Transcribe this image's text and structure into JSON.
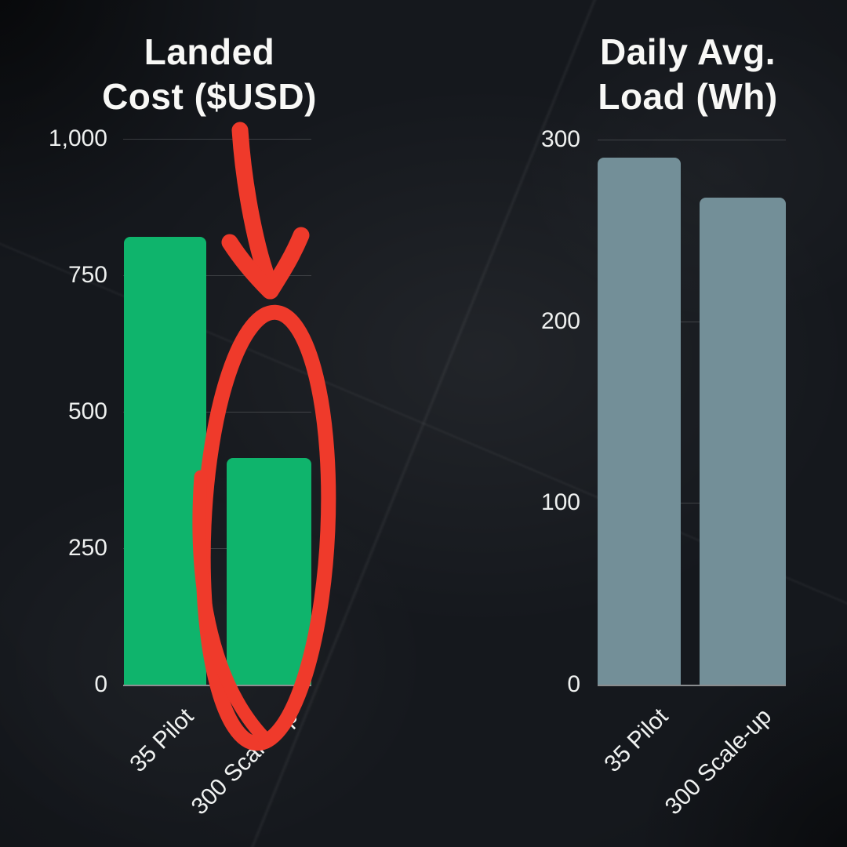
{
  "chart_data": [
    {
      "type": "bar",
      "title": "Landed Cost ($USD)",
      "title_lines": [
        "Landed",
        "Cost ($USD)"
      ],
      "categories": [
        "35 Pilot",
        "300 Scale-up"
      ],
      "values": [
        820,
        415
      ],
      "ylim": [
        0,
        1000
      ],
      "ytick_values": [
        0,
        250,
        500,
        750,
        1000
      ],
      "ytick_labels": [
        "0",
        "250",
        "500",
        "750",
        "1,000"
      ],
      "bar_color_hex": "#0fb46c",
      "grid": true,
      "legend": "none",
      "annotation": "hand-drawn red circle around 300 Scale-up bar with red arrow pointing down at it"
    },
    {
      "type": "bar",
      "title": "Daily Avg. Load (Wh)",
      "title_lines": [
        "Daily Avg.",
        "Load (Wh)"
      ],
      "categories": [
        "35 Pilot",
        "300 Scale-up"
      ],
      "values": [
        290,
        268
      ],
      "ylim": [
        0,
        300
      ],
      "ytick_values": [
        0,
        100,
        200,
        300
      ],
      "ytick_labels": [
        "0",
        "100",
        "200",
        "300"
      ],
      "bar_color_hex": "#738f98",
      "grid": true,
      "legend": "none"
    }
  ],
  "annotation": {
    "color_hex": "#ef3a2b",
    "shapes": [
      "down-arrow",
      "hand-drawn-ellipse"
    ],
    "target": "300 Scale-up bar of Landed Cost chart"
  },
  "colors": {
    "background": "#15181d",
    "title_text": "#f8f8f6",
    "tick_text": "#eef0ef",
    "green_bar": "#0fb46c",
    "gray_bar": "#738f98",
    "annotation_red": "#ef3a2b"
  }
}
